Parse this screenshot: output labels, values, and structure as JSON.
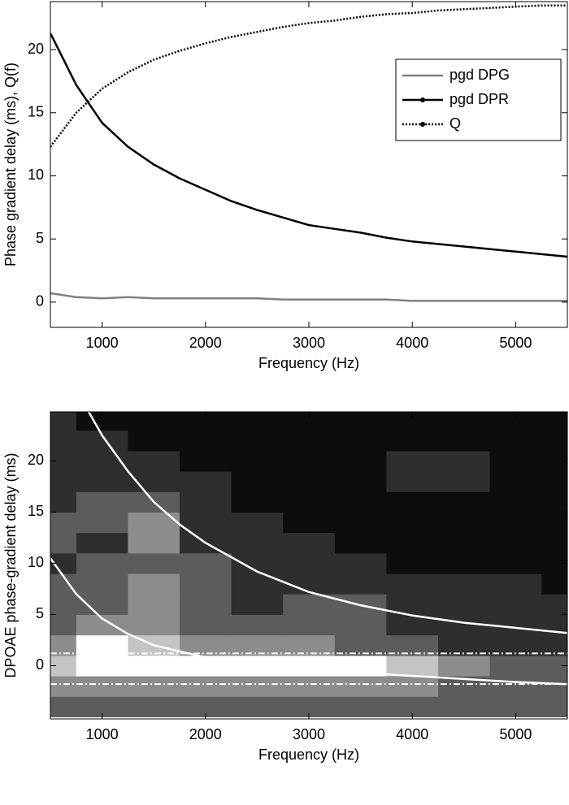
{
  "chart_data": [
    {
      "type": "line",
      "xlabel": "Frequency (Hz)",
      "ylabel": "Phase gradient delay (ms), Q(f)",
      "xlim": [
        500,
        5500
      ],
      "ylim": [
        -2,
        23.8
      ],
      "xticks": [
        1000,
        2000,
        3000,
        4000,
        5000
      ],
      "yticks": [
        0,
        5,
        10,
        15,
        20
      ],
      "legend": "upper right",
      "x": [
        500,
        750,
        1000,
        1250,
        1500,
        1750,
        2000,
        2250,
        2500,
        2750,
        3000,
        3250,
        3500,
        3750,
        4000,
        4250,
        4500,
        4750,
        5000,
        5250,
        5500
      ],
      "series": [
        {
          "name": "pgd DPG",
          "color": "#808080",
          "style": "solid",
          "marker": false,
          "values": [
            0.7,
            0.4,
            0.3,
            0.4,
            0.3,
            0.3,
            0.3,
            0.3,
            0.3,
            0.2,
            0.2,
            0.2,
            0.2,
            0.2,
            0.1,
            0.1,
            0.1,
            0.1,
            0.1,
            0.1,
            0.1
          ]
        },
        {
          "name": "pgd DPR",
          "color": "#000000",
          "style": "solid",
          "marker": true,
          "values": [
            21.3,
            17.2,
            14.2,
            12.3,
            10.9,
            9.8,
            8.9,
            8.0,
            7.3,
            6.7,
            6.1,
            5.8,
            5.5,
            5.1,
            4.8,
            4.6,
            4.4,
            4.2,
            4.0,
            3.8,
            3.6
          ]
        },
        {
          "name": "Q",
          "color": "#000000",
          "style": "dotted",
          "marker": true,
          "values": [
            12.3,
            15.0,
            16.9,
            18.2,
            19.2,
            19.9,
            20.5,
            21.0,
            21.4,
            21.8,
            22.1,
            22.3,
            22.6,
            22.8,
            22.9,
            23.1,
            23.2,
            23.3,
            23.4,
            23.5,
            23.5
          ]
        }
      ]
    },
    {
      "type": "contour",
      "xlabel": "Frequency (Hz)",
      "ylabel": "DPOAE phase-gradient delay (ms)",
      "xlim": [
        500,
        5500
      ],
      "ylim": [
        -5.2,
        24.8
      ],
      "xticks": [
        1000,
        2000,
        3000,
        4000,
        5000
      ],
      "yticks": [
        0,
        5,
        10,
        15,
        20
      ],
      "colormap": [
        "#0d0d0d",
        "#2e2e2e",
        "#5c5c5c",
        "#8c8c8c",
        "#c4c4c4",
        "#ffffff"
      ],
      "x_centers": [
        500,
        1000,
        1500,
        2000,
        2500,
        3000,
        3500,
        4000,
        4500,
        5000,
        5500
      ],
      "y_centers": [
        -4,
        -2,
        0,
        2,
        4,
        6,
        8,
        10,
        12,
        14,
        16,
        18,
        20,
        22,
        24
      ],
      "z": [
        [
          2,
          2,
          2,
          2,
          2,
          2,
          2,
          2,
          2,
          2,
          2
        ],
        [
          3,
          3,
          3,
          3,
          3,
          3,
          3,
          3,
          2,
          2,
          2
        ],
        [
          4,
          5,
          5,
          5,
          5,
          5,
          5,
          4,
          3,
          2,
          2
        ],
        [
          3,
          5,
          4,
          3,
          3,
          3,
          2,
          2,
          1,
          1,
          1
        ],
        [
          2,
          3,
          3,
          2,
          2,
          2,
          2,
          1,
          1,
          1,
          1
        ],
        [
          2,
          2,
          3,
          2,
          1,
          2,
          2,
          1,
          1,
          1,
          1
        ],
        [
          2,
          2,
          3,
          2,
          1,
          1,
          1,
          1,
          1,
          1,
          0
        ],
        [
          1,
          2,
          2,
          2,
          1,
          1,
          1,
          0,
          0,
          0,
          0
        ],
        [
          2,
          1,
          3,
          1,
          1,
          1,
          0,
          0,
          0,
          0,
          0
        ],
        [
          2,
          2,
          3,
          1,
          1,
          0,
          0,
          0,
          0,
          0,
          0
        ],
        [
          1,
          2,
          2,
          1,
          0,
          0,
          0,
          0,
          0,
          0,
          0
        ],
        [
          1,
          1,
          1,
          1,
          0,
          0,
          0,
          1,
          1,
          0,
          0
        ],
        [
          1,
          1,
          1,
          0,
          0,
          0,
          0,
          1,
          1,
          0,
          0
        ],
        [
          1,
          1,
          0,
          0,
          0,
          0,
          0,
          0,
          0,
          0,
          0
        ],
        [
          1,
          0,
          0,
          0,
          0,
          0,
          0,
          0,
          0,
          0,
          0
        ]
      ],
      "curves": [
        {
          "color": "#ffffff",
          "x": [
            870,
            1000,
            1250,
            1500,
            1750,
            2000,
            2500,
            3000,
            3500,
            4000,
            4500,
            5000,
            5500
          ],
          "y": [
            24.8,
            22.5,
            19,
            16,
            13.8,
            12,
            9.2,
            7.2,
            5.9,
            4.9,
            4.2,
            3.7,
            3.2
          ]
        },
        {
          "color": "#ffffff",
          "x": [
            500,
            750,
            1000,
            1250,
            1500,
            2000,
            2500,
            3000,
            3500,
            4000,
            4500,
            5000,
            5500
          ],
          "y": [
            10.5,
            7.0,
            4.6,
            3.1,
            2.0,
            0.8,
            0.2,
            -0.3,
            -0.7,
            -1.0,
            -1.3,
            -1.6,
            -1.8
          ]
        }
      ],
      "hlines": [
        1.2,
        -1.8
      ],
      "hline_color": "#ffffff"
    }
  ]
}
